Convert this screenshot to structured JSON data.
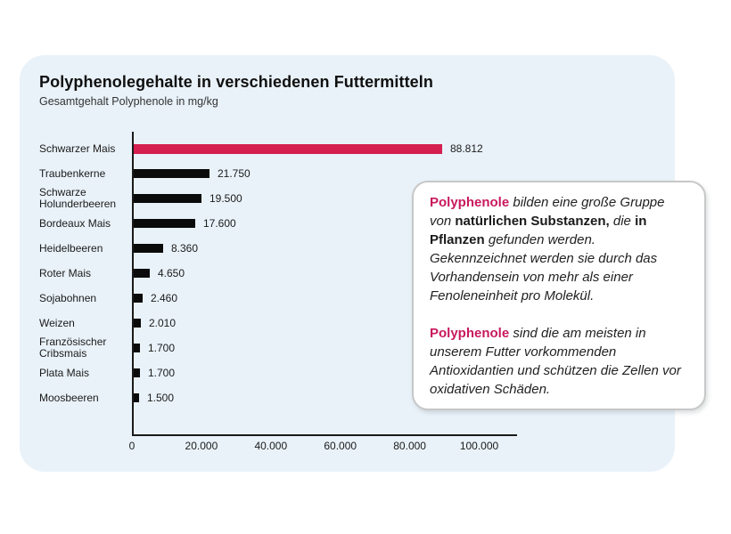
{
  "card": {
    "background": "#E9F2F9"
  },
  "chart_data": {
    "type": "bar",
    "orientation": "horizontal",
    "title": "Polyphenolegehalte in verschiedenen Futtermitteln",
    "subtitle": "Gesamtgehalt Polyphenole in mg/kg",
    "unit": "mg/kg",
    "categories": [
      "Schwarzer Mais",
      "Traubenkerne",
      "Schwarze Holunderbeeren",
      "Bordeaux Mais",
      "Heidelbeeren",
      "Roter Mais",
      "Sojabohnen",
      "Weizen",
      "Französischer Cribsmais",
      "Plata Mais",
      "Moosbeeren"
    ],
    "values": [
      88812,
      21750,
      19500,
      17600,
      8360,
      4650,
      2460,
      2010,
      1700,
      1700,
      1500
    ],
    "value_labels": [
      "88.812",
      "21.750",
      "19.500",
      "17.600",
      "8.360",
      "4.650",
      "2.460",
      "2.010",
      "1.700",
      "1.700",
      "1.500"
    ],
    "bar_color": "#0b0b0b",
    "highlight_index": 0,
    "highlight_color": "#D41F50",
    "x_ticks": [
      0,
      20000,
      40000,
      60000,
      80000,
      100000
    ],
    "x_tick_labels": [
      "0",
      "20.000",
      "40.000",
      "60.000",
      "80.000",
      "100.000"
    ],
    "xlim": [
      0,
      105000
    ],
    "grid": false,
    "legend": false
  },
  "textbox": {
    "background": "#ffffff",
    "border_color": "#c7c7c7",
    "accent_color": "#C8195E",
    "paragraphs": [
      {
        "segments": [
          {
            "text": "Polyphenole",
            "style": "accent"
          },
          {
            "text": " bilden eine große Gruppe von ",
            "style": "italic"
          },
          {
            "text": "natürlichen Substanzen,",
            "style": "bold"
          },
          {
            "text": " die ",
            "style": "italic"
          },
          {
            "text": "in Pflanzen",
            "style": "bold"
          },
          {
            "text": " gefunden werden. Gekennzeichnet werden sie durch das Vorhandensein von mehr als einer Fenoleneinheit pro Molekül.",
            "style": "italic"
          }
        ]
      },
      {
        "segments": [
          {
            "text": "Polyphenole",
            "style": "accent"
          },
          {
            "text": " sind die am meisten in unserem Futter vorkommenden Antioxidantien und schützen die Zellen vor oxidativen Schäden.",
            "style": "italic"
          }
        ]
      }
    ]
  }
}
